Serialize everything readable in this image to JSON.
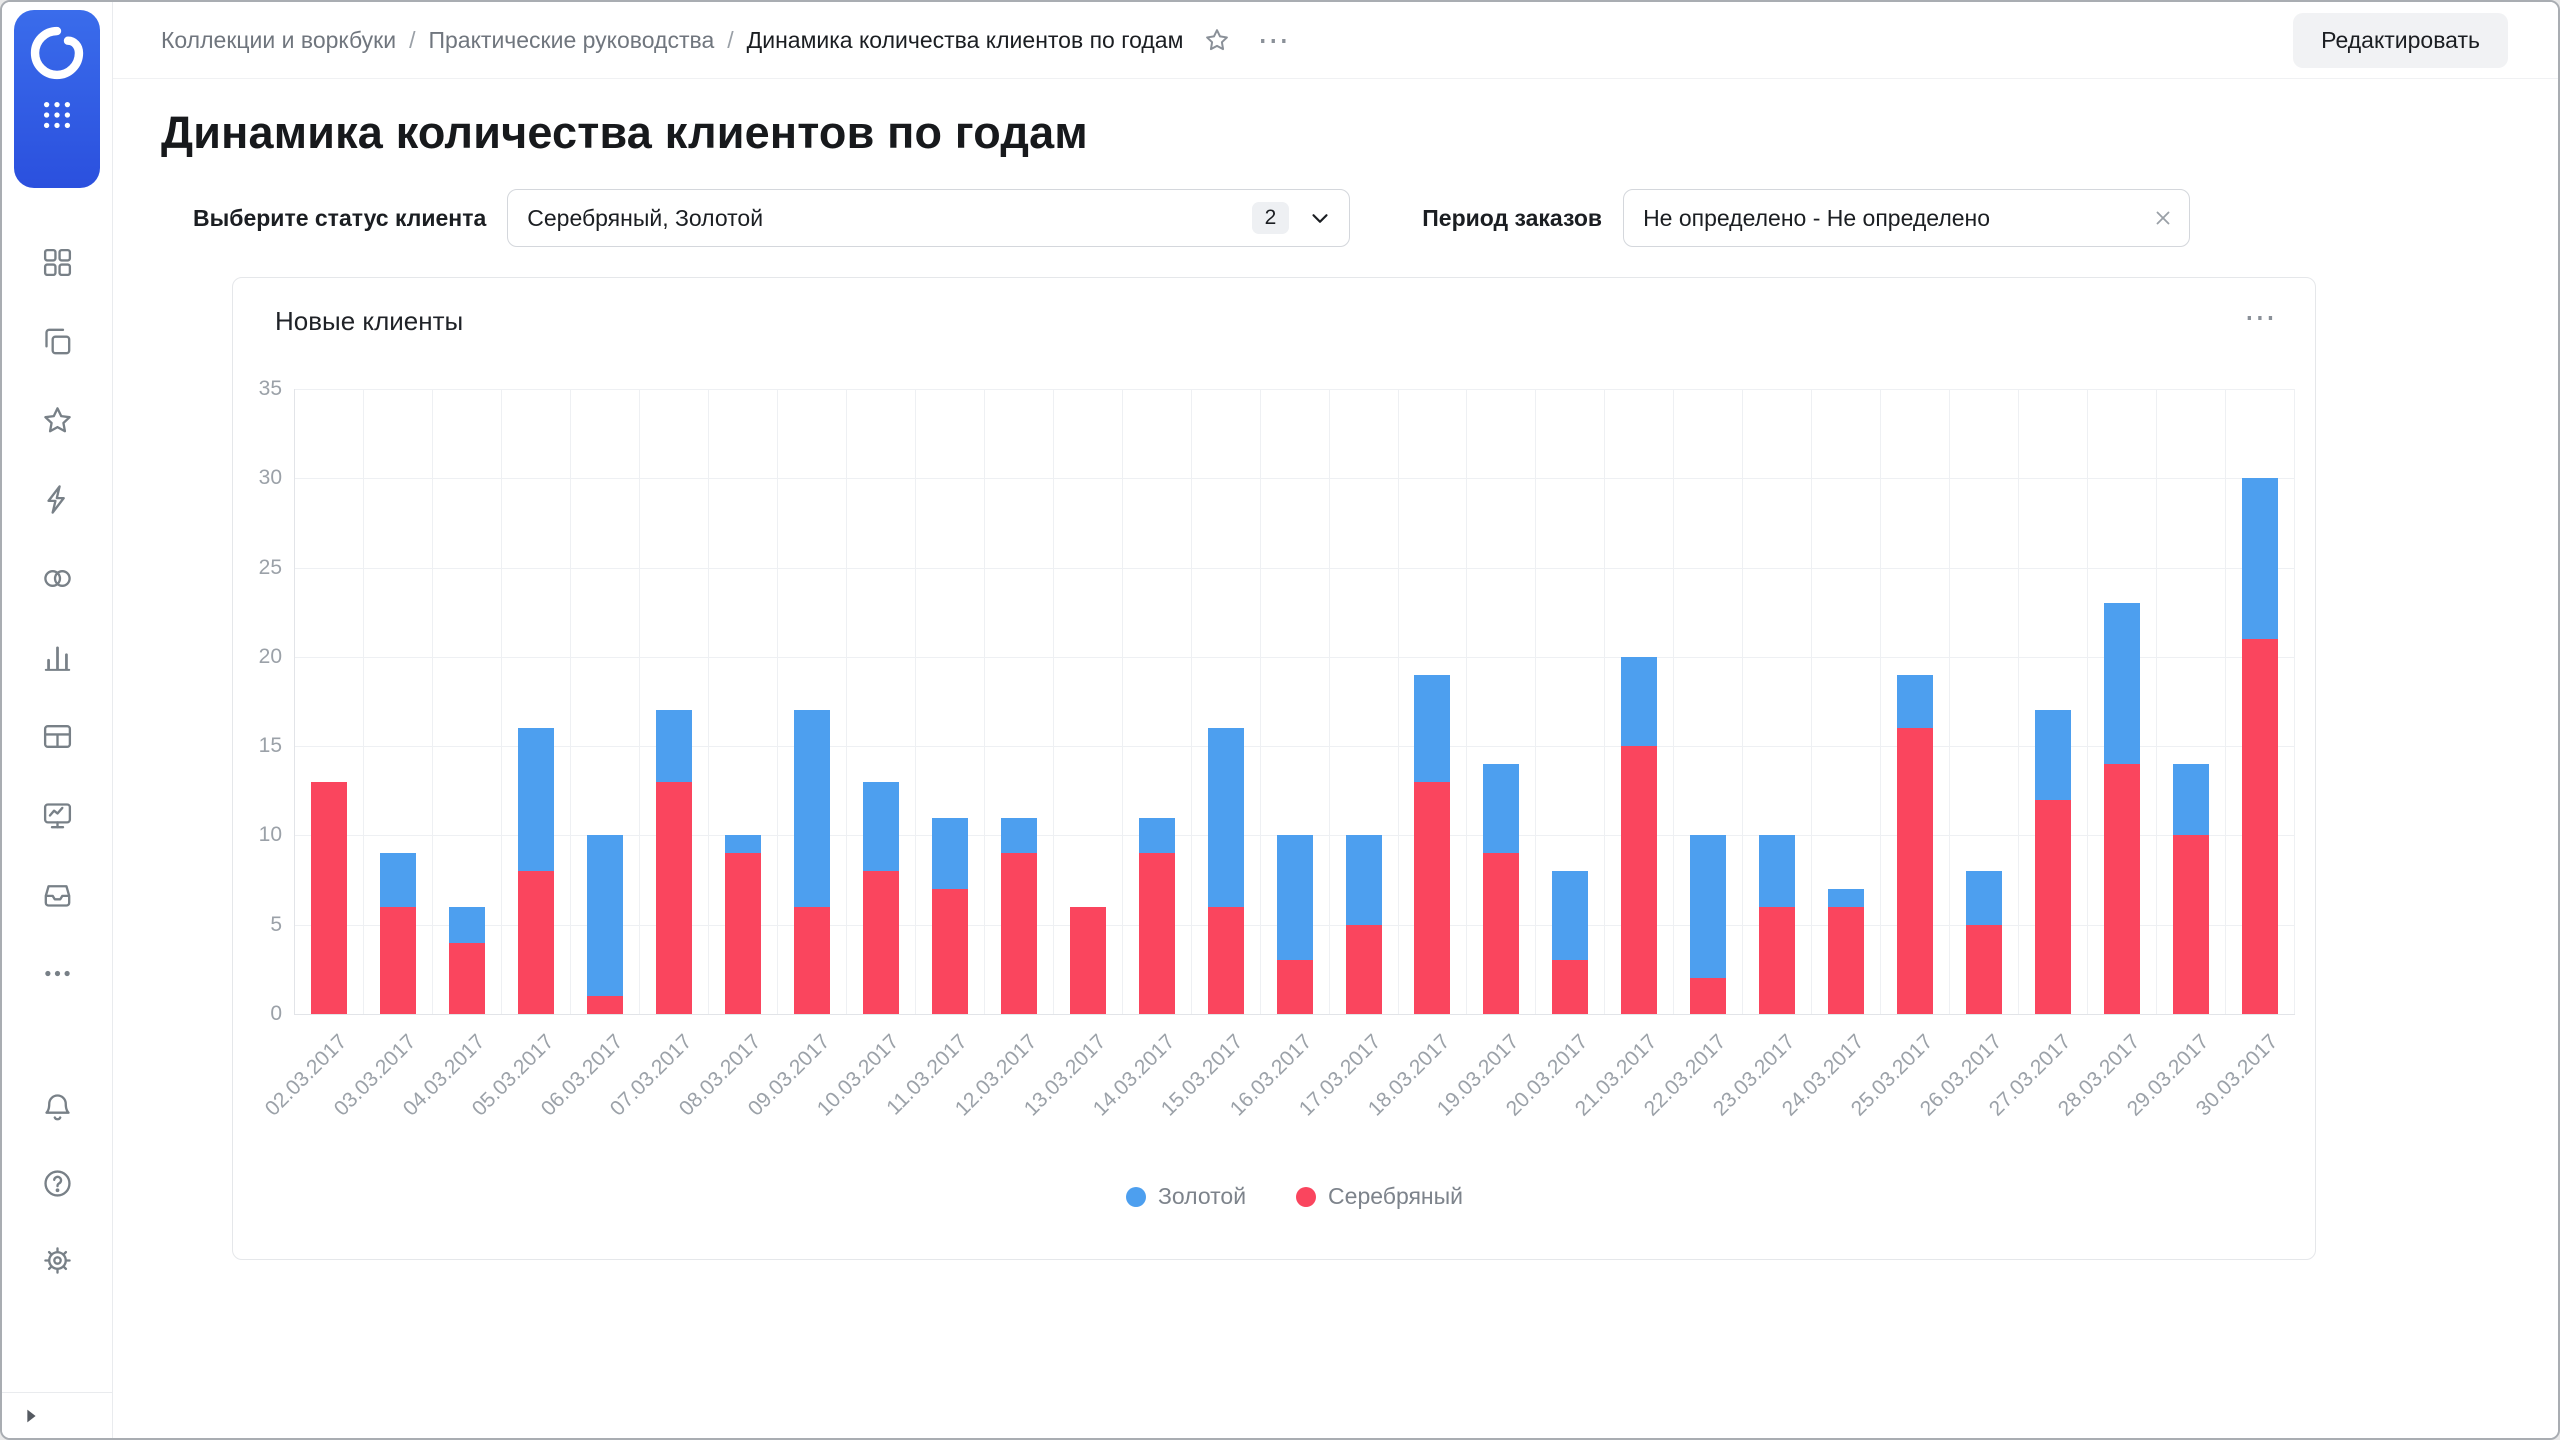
{
  "header": {
    "breadcrumbs": [
      "Коллекции и воркбуки",
      "Практические руководства",
      "Динамика количества клиентов по годам"
    ],
    "separator": "/",
    "more_icon": "⋯",
    "edit_button": "Редактировать"
  },
  "page": {
    "title": "Динамика количества клиентов по годам"
  },
  "filters": {
    "status": {
      "label": "Выберите статус клиента",
      "value": "Серебряный, Золотой",
      "count": "2"
    },
    "period": {
      "label": "Период заказов",
      "value": "Не определено - Не определено"
    }
  },
  "chart_card": {
    "more_icon": "⋯"
  },
  "chart_data": {
    "type": "bar",
    "stacked": true,
    "title": "Новые клиенты",
    "categories": [
      "02.03.2017",
      "03.03.2017",
      "04.03.2017",
      "05.03.2017",
      "06.03.2017",
      "07.03.2017",
      "08.03.2017",
      "09.03.2017",
      "10.03.2017",
      "11.03.2017",
      "12.03.2017",
      "13.03.2017",
      "14.03.2017",
      "15.03.2017",
      "16.03.2017",
      "17.03.2017",
      "18.03.2017",
      "19.03.2017",
      "20.03.2017",
      "21.03.2017",
      "22.03.2017",
      "23.03.2017",
      "24.03.2017",
      "25.03.2017",
      "26.03.2017",
      "27.03.2017",
      "28.03.2017",
      "29.03.2017",
      "30.03.2017"
    ],
    "series": [
      {
        "name": "Золотой",
        "color": "#4D9FEF",
        "values": [
          0,
          3,
          2,
          8,
          9,
          4,
          1,
          11,
          5,
          4,
          2,
          0,
          2,
          10,
          7,
          5,
          6,
          5,
          5,
          5,
          8,
          4,
          1,
          3,
          3,
          5,
          9,
          4,
          9
        ]
      },
      {
        "name": "Серебряный",
        "color": "#FA455E",
        "values": [
          13,
          6,
          4,
          8,
          1,
          13,
          9,
          6,
          8,
          7,
          9,
          6,
          9,
          6,
          3,
          5,
          13,
          9,
          3,
          15,
          2,
          6,
          6,
          16,
          5,
          12,
          14,
          10,
          21
        ]
      }
    ],
    "stack_order_bottom_to_top": [
      "Серебряный",
      "Золотой"
    ],
    "ylim": [
      0,
      35
    ],
    "ytick_step": 5,
    "grid": true,
    "legend_position": "bottom",
    "x_label_rotation": -45
  },
  "sidebar": {
    "icons": [
      "datalens-logo",
      "apps-grid",
      "collections",
      "workbooks",
      "favorites",
      "connections",
      "datasets",
      "charts",
      "dashboards",
      "monitoring",
      "storage",
      "more",
      "notifications",
      "help",
      "settings",
      "expand"
    ],
    "accent_color": "#2B50DE"
  }
}
